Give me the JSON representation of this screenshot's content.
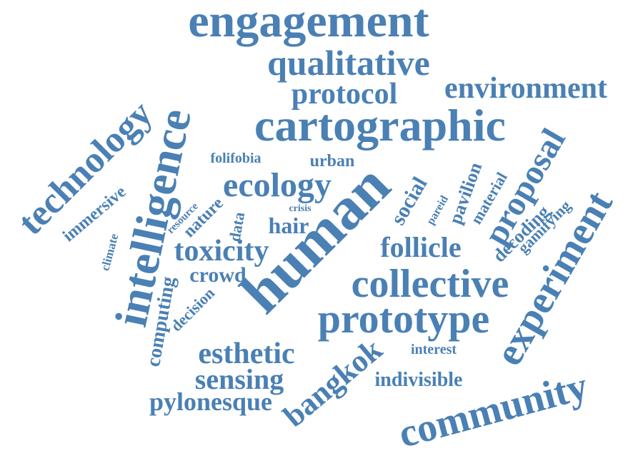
{
  "color": "#4a80b4",
  "words": [
    {
      "id": "engagement",
      "text": "engagement",
      "rotation": 0
    },
    {
      "id": "qualitative",
      "text": "qualitative",
      "rotation": 0
    },
    {
      "id": "protocol",
      "text": "protocol",
      "rotation": 0
    },
    {
      "id": "environment",
      "text": "environment",
      "rotation": 0
    },
    {
      "id": "cartographic",
      "text": "cartographic",
      "rotation": 0
    },
    {
      "id": "technology",
      "text": "technology",
      "rotation": -45
    },
    {
      "id": "intelligence",
      "text": "intelligence",
      "rotation": -78
    },
    {
      "id": "folifobia",
      "text": "folifobia",
      "rotation": 0
    },
    {
      "id": "urban",
      "text": "urban",
      "rotation": 0
    },
    {
      "id": "ecology",
      "text": "ecology",
      "rotation": 0
    },
    {
      "id": "human",
      "text": "human",
      "rotation": -45
    },
    {
      "id": "immersive",
      "text": "immersive",
      "rotation": -40
    },
    {
      "id": "resource",
      "text": "resource",
      "rotation": -45
    },
    {
      "id": "nature",
      "text": "nature",
      "rotation": -45
    },
    {
      "id": "data",
      "text": "data",
      "rotation": -80
    },
    {
      "id": "crisis",
      "text": "crisis",
      "rotation": 0
    },
    {
      "id": "hair",
      "text": "hair",
      "rotation": 0
    },
    {
      "id": "climate",
      "text": "climate",
      "rotation": -75
    },
    {
      "id": "toxicity",
      "text": "toxicity",
      "rotation": 0
    },
    {
      "id": "crowd",
      "text": "crowd",
      "rotation": 0
    },
    {
      "id": "computing",
      "text": "computing",
      "rotation": -80
    },
    {
      "id": "decision",
      "text": "decision",
      "rotation": -45
    },
    {
      "id": "social",
      "text": "social",
      "rotation": -60
    },
    {
      "id": "follicle",
      "text": "follicle",
      "rotation": 0
    },
    {
      "id": "collective",
      "text": "collective",
      "rotation": 0
    },
    {
      "id": "pareid",
      "text": "pareid",
      "rotation": -60
    },
    {
      "id": "pavilion",
      "text": "pavilion",
      "rotation": -70
    },
    {
      "id": "material",
      "text": "material",
      "rotation": -60
    },
    {
      "id": "proposal",
      "text": "proposal",
      "rotation": -60
    },
    {
      "id": "decoding",
      "text": "decoding",
      "rotation": -45
    },
    {
      "id": "gamifying",
      "text": "gamifying",
      "rotation": -45
    },
    {
      "id": "experiment",
      "text": "experiment",
      "rotation": -60
    },
    {
      "id": "prototype",
      "text": "prototype",
      "rotation": 0
    },
    {
      "id": "esthetic",
      "text": "esthetic",
      "rotation": 0
    },
    {
      "id": "interest",
      "text": "interest",
      "rotation": 0
    },
    {
      "id": "sensing",
      "text": "sensing",
      "rotation": 0
    },
    {
      "id": "bangkok",
      "text": "bangkok",
      "rotation": -40
    },
    {
      "id": "indivisible",
      "text": "indivisible",
      "rotation": 0
    },
    {
      "id": "pylonesque",
      "text": "pylonesque",
      "rotation": 0
    },
    {
      "id": "community",
      "text": "community",
      "rotation": -15
    }
  ]
}
